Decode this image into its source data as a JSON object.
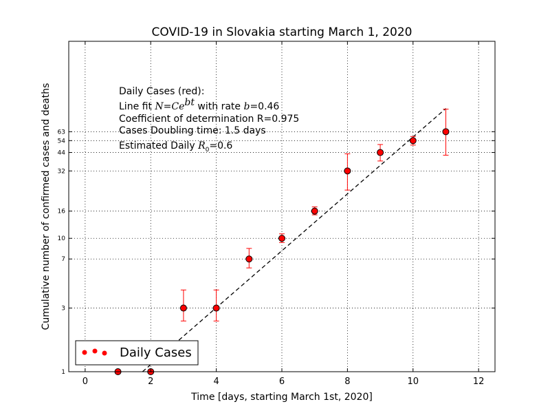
{
  "chart_data": {
    "type": "scatter",
    "title": "COVID-19 in Slovakia starting March 1, 2020",
    "xlabel": "Time [days, starting March 1st, 2020]",
    "ylabel": "Cumulative number of confirmed cases and deaths",
    "xlim": [
      -0.5,
      12.5
    ],
    "ylim": [
      1,
      300
    ],
    "yscale": "log",
    "grid": true,
    "x_ticks": [
      0,
      2,
      4,
      6,
      8,
      10,
      12
    ],
    "y_ticks": [
      1,
      3,
      7,
      10,
      16,
      32,
      44,
      54,
      63
    ],
    "series": [
      {
        "name": "Daily Cases",
        "color": "#ff0000",
        "x": [
          1,
          2,
          3,
          4,
          5,
          6,
          7,
          8,
          9,
          10,
          11
        ],
        "y": [
          1,
          1,
          3,
          3,
          7,
          10,
          16,
          32,
          44,
          54,
          63
        ],
        "err_low": [
          0,
          0,
          2.4,
          2.4,
          6,
          9.3,
          15,
          23,
          38,
          50,
          42
        ],
        "err_high": [
          0,
          0,
          4.1,
          4.1,
          8.4,
          10.8,
          17.2,
          43,
          50.5,
          58,
          93
        ]
      }
    ],
    "fit_line": {
      "style": "dashed",
      "color": "#000000",
      "x": [
        1.75,
        11
      ],
      "y": [
        1,
        94
      ]
    },
    "annotations": {
      "line1": "Daily Cases (red):",
      "line2_prefix": "Line fit ",
      "line2_formula_n": "N",
      "line2_formula_eq": "=",
      "line2_formula_c": "Ce",
      "line2_formula_exp": "bt",
      "line2_middle": " with rate ",
      "line2_b": "b",
      "line2_value": "=0.46",
      "line3": "Coefficient of determination R=0.975",
      "line4": "Cases Doubling time: 1.5 days",
      "line5_prefix": "Estimated Daily ",
      "line5_r": "R",
      "line5_sub": "0",
      "line5_value": "=0.6"
    },
    "legend": {
      "position": "lower-left",
      "label": "Daily Cases"
    }
  }
}
